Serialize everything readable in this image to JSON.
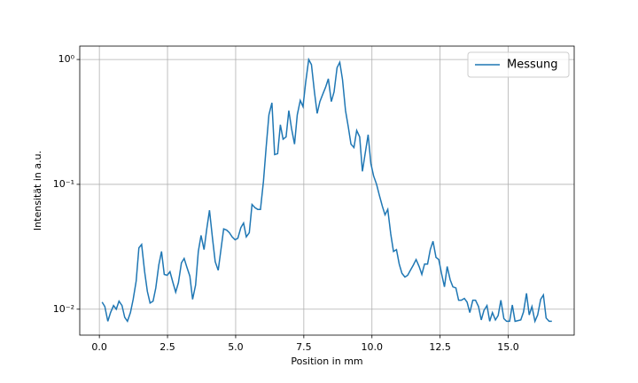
{
  "chart_data": {
    "type": "line",
    "x_label": "Position in mm",
    "y_label": "Intensität in a.u.",
    "log_y": true,
    "grid": true,
    "legend": "upper right",
    "xlim": [
      -0.72,
      17.42
    ],
    "ylim": [
      0.0062,
      1.28
    ],
    "xticks": [
      {
        "value": 0,
        "label": "0.0"
      },
      2.5,
      {
        "value": 5,
        "label": "5.0"
      },
      7.5,
      {
        "value": 10,
        "label": "10.0"
      },
      12.5,
      {
        "value": 15,
        "label": "15.0"
      }
    ],
    "yticks": [
      {
        "value": 0.01,
        "label": "10⁻²"
      },
      {
        "value": 0.1,
        "label": "10⁻¹"
      },
      {
        "value": 1,
        "label": "10⁰"
      }
    ],
    "x": [
      0.1,
      0.2,
      0.31,
      0.41,
      0.52,
      0.62,
      0.72,
      0.83,
      0.93,
      1.03,
      1.14,
      1.24,
      1.35,
      1.45,
      1.55,
      1.66,
      1.76,
      1.86,
      1.97,
      2.07,
      2.18,
      2.28,
      2.38,
      2.49,
      2.59,
      2.7,
      2.8,
      2.9,
      3.01,
      3.11,
      3.21,
      3.32,
      3.42,
      3.53,
      3.63,
      3.73,
      3.84,
      3.94,
      4.04,
      4.15,
      4.25,
      4.36,
      4.46,
      4.56,
      4.67,
      4.77,
      4.87,
      4.98,
      5.08,
      5.19,
      5.29,
      5.39,
      5.5,
      5.6,
      5.71,
      5.81,
      5.91,
      6.02,
      6.12,
      6.22,
      6.33,
      6.43,
      6.54,
      6.64,
      6.74,
      6.85,
      6.95,
      7.05,
      7.16,
      7.26,
      7.37,
      7.47,
      7.57,
      7.68,
      7.78,
      7.89,
      7.99,
      8.09,
      8.2,
      8.3,
      8.4,
      8.51,
      8.61,
      8.72,
      8.82,
      8.92,
      9.03,
      9.13,
      9.23,
      9.34,
      9.44,
      9.55,
      9.65,
      9.75,
      9.86,
      9.96,
      10.06,
      10.17,
      10.27,
      10.38,
      10.48,
      10.58,
      10.69,
      10.79,
      10.9,
      11.0,
      11.1,
      11.21,
      11.31,
      11.41,
      11.52,
      11.62,
      11.73,
      11.83,
      11.93,
      12.04,
      12.14,
      12.24,
      12.35,
      12.45,
      12.56,
      12.66,
      12.76,
      12.87,
      12.97,
      13.08,
      13.18,
      13.28,
      13.39,
      13.49,
      13.59,
      13.7,
      13.8,
      13.91,
      14.01,
      14.11,
      14.22,
      14.32,
      14.42,
      14.53,
      14.63,
      14.73,
      14.84,
      14.94,
      15.05,
      15.15,
      15.25,
      15.36,
      15.46,
      15.56,
      15.67,
      15.77,
      15.87,
      15.98,
      16.08,
      16.19,
      16.29,
      16.39,
      16.5,
      16.6
    ],
    "series": [
      {
        "name": "Messung",
        "color": "#1f77b4",
        "values": [
          0.0114,
          0.0105,
          0.008,
          0.0094,
          0.0107,
          0.01,
          0.0116,
          0.0107,
          0.0086,
          0.008,
          0.0094,
          0.012,
          0.0168,
          0.031,
          0.033,
          0.02,
          0.0139,
          0.0112,
          0.0116,
          0.0148,
          0.0226,
          0.029,
          0.019,
          0.0187,
          0.02,
          0.0163,
          0.0137,
          0.0163,
          0.0235,
          0.0255,
          0.0217,
          0.0184,
          0.012,
          0.0156,
          0.029,
          0.039,
          0.03,
          0.044,
          0.062,
          0.037,
          0.024,
          0.0205,
          0.03,
          0.044,
          0.043,
          0.041,
          0.038,
          0.036,
          0.037,
          0.045,
          0.049,
          0.038,
          0.041,
          0.069,
          0.065,
          0.063,
          0.063,
          0.106,
          0.2,
          0.36,
          0.45,
          0.173,
          0.176,
          0.3,
          0.23,
          0.24,
          0.39,
          0.28,
          0.21,
          0.36,
          0.47,
          0.42,
          0.66,
          1.0,
          0.91,
          0.55,
          0.37,
          0.46,
          0.53,
          0.6,
          0.7,
          0.46,
          0.55,
          0.86,
          0.95,
          0.69,
          0.39,
          0.29,
          0.21,
          0.197,
          0.27,
          0.24,
          0.127,
          0.176,
          0.25,
          0.147,
          0.117,
          0.1,
          0.082,
          0.067,
          0.057,
          0.063,
          0.04,
          0.029,
          0.03,
          0.023,
          0.0194,
          0.0181,
          0.0187,
          0.0205,
          0.0226,
          0.025,
          0.022,
          0.019,
          0.023,
          0.023,
          0.03,
          0.035,
          0.026,
          0.025,
          0.019,
          0.0151,
          0.022,
          0.0172,
          0.0151,
          0.0148,
          0.0118,
          0.0118,
          0.0122,
          0.0114,
          0.0094,
          0.0118,
          0.0118,
          0.0105,
          0.0082,
          0.0098,
          0.0107,
          0.008,
          0.0094,
          0.0082,
          0.0089,
          0.0118,
          0.0084,
          0.008,
          0.008,
          0.0108,
          0.008,
          0.0081,
          0.0082,
          0.0095,
          0.0134,
          0.009,
          0.0105,
          0.008,
          0.009,
          0.012,
          0.013,
          0.0085,
          0.008,
          0.008
        ]
      }
    ]
  }
}
